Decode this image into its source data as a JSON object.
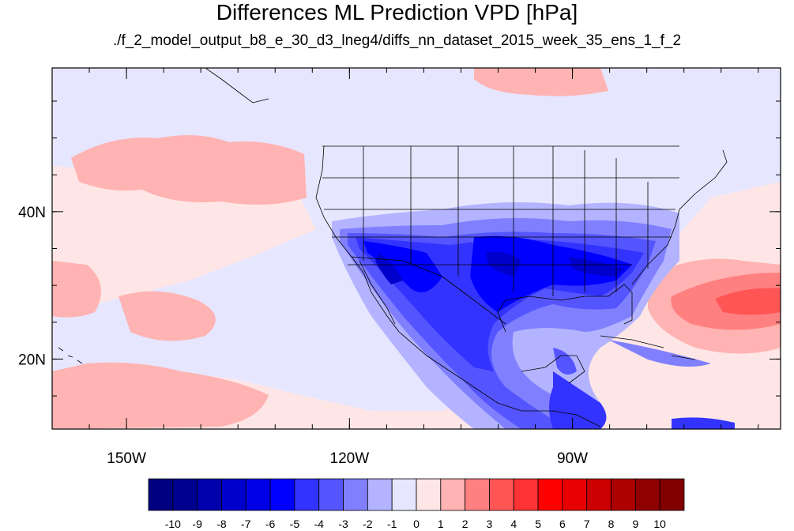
{
  "title": "Differences ML Prediction VPD [hPa]",
  "subtitle": "./f_2_model_output_b8_e_30_d3_lneg4/diffs_nn_dataset_2015_week_35_ens_1_f_2",
  "map": {
    "lon_range": [
      -160,
      -62
    ],
    "lat_range": [
      10.5,
      59.5
    ],
    "x_ticks": [
      {
        "lon": -150,
        "label": "150W"
      },
      {
        "lon": -120,
        "label": "120W"
      },
      {
        "lon": -90,
        "label": "90W"
      }
    ],
    "y_ticks": [
      {
        "lat": 40,
        "label": "40N"
      },
      {
        "lat": 20,
        "label": "20N"
      }
    ]
  },
  "colorbar": {
    "labels": [
      "-10",
      "-9",
      "-8",
      "-7",
      "-6",
      "-5",
      "-4",
      "-3",
      "-2",
      "-1",
      "0",
      "1",
      "2",
      "3",
      "4",
      "5",
      "6",
      "7",
      "8",
      "9",
      "10"
    ],
    "colors": [
      "#000080",
      "#00008f",
      "#0000ad",
      "#0000cc",
      "#0000e6",
      "#0000ff",
      "#3333ff",
      "#5555ff",
      "#8080ff",
      "#b3b3ff",
      "#e6e6ff",
      "#ffe6e6",
      "#ffb3b3",
      "#ff8080",
      "#ff5555",
      "#ff3333",
      "#ff0000",
      "#e60000",
      "#cc0000",
      "#ad0000",
      "#8f0000",
      "#800000"
    ]
  },
  "fill_colors": {
    "ocean_base": "#ffe6e6",
    "light_blue": "#e6e6ff",
    "blue1": "#b3b3ff",
    "blue2": "#8080ff",
    "blue3": "#5555ff",
    "blue4": "#3333ff",
    "blue5": "#0000ff",
    "blue6": "#0000cc",
    "pink": "#ffb3b3",
    "salmon": "#ff8080",
    "red": "#ff5555",
    "coast": "#000000"
  }
}
